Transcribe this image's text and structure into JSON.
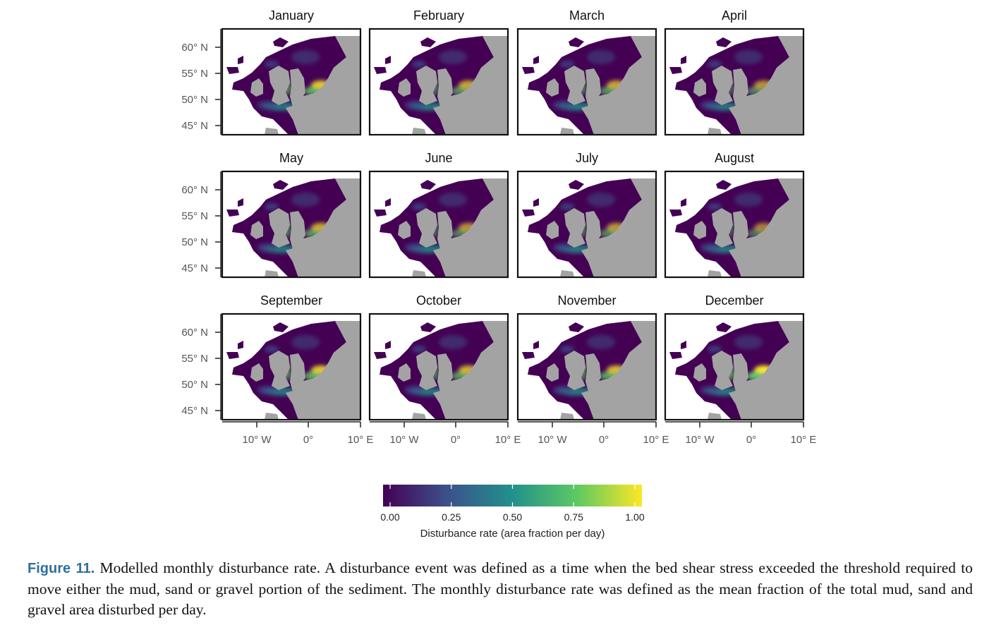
{
  "figure": {
    "months": [
      "January",
      "February",
      "March",
      "April",
      "May",
      "June",
      "July",
      "August",
      "September",
      "October",
      "November",
      "December"
    ],
    "lat_ticks": [
      "60° N",
      "55° N",
      "50° N",
      "45° N"
    ],
    "lon_ticks": [
      "10° W",
      "0°",
      "10° E"
    ],
    "colorbar": {
      "ticks": [
        "0.00",
        "0.25",
        "0.50",
        "0.75",
        "1.00"
      ],
      "title": "Disturbance rate (area fraction per day)",
      "colors": [
        "#440154",
        "#3b528b",
        "#21918c",
        "#5ec962",
        "#fde725"
      ]
    },
    "map_colors": {
      "land": "#a3a3a3",
      "background": "#ffffff",
      "frame": "#111111"
    },
    "hotspot_intensity": [
      0.85,
      0.7,
      0.7,
      0.62,
      0.72,
      0.62,
      0.64,
      0.55,
      0.85,
      0.75,
      0.8,
      1.0
    ]
  },
  "caption": {
    "label": "Figure 11.",
    "text": "Modelled monthly disturbance rate. A disturbance event was defined as a time when the bed shear stress exceeded the threshold required to move either the mud, sand or gravel portion of the sediment. The monthly disturbance rate was defined as the mean fraction of the total mud, sand and gravel area disturbed per day."
  }
}
